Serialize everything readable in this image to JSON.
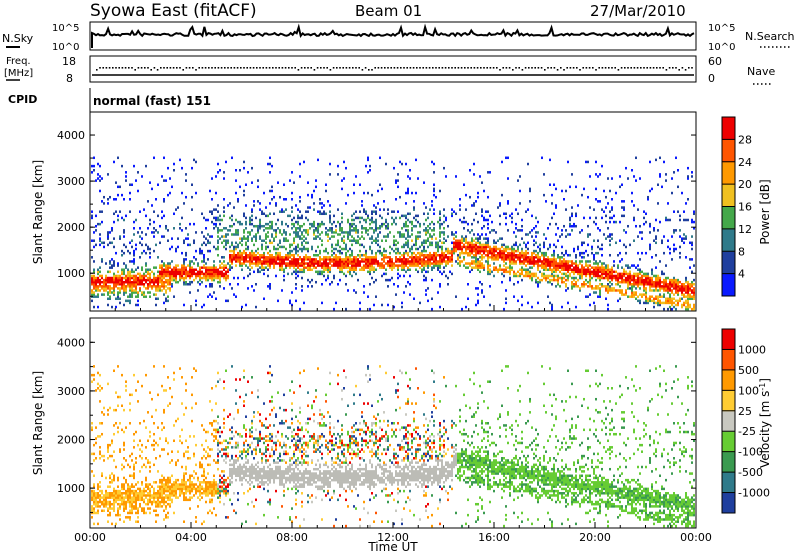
{
  "header": {
    "station": "Syowa East (fitACF)",
    "beam": "Beam 01",
    "date": "27/Mar/2010"
  },
  "summary_panels": {
    "nsky_label": "N.Sky",
    "nsky_ticks": [
      "10^5",
      "10^0"
    ],
    "nsearch_label": "N.Search",
    "nsearch_ticks": [
      "10^5",
      "10^0"
    ],
    "freq_label_line1": "Freq.",
    "freq_label_line2": "[MHz]",
    "freq_ticks": [
      "18",
      "8"
    ],
    "nave_label": "Nave",
    "nave_ticks": [
      "60",
      "0"
    ],
    "cpid_label": "CPID",
    "cpid_value": "normal (fast) 151"
  },
  "colors": {
    "power_scale": [
      "#0a1aff",
      "#1f3f9e",
      "#2f7a8a",
      "#44a84a",
      "#f0c020",
      "#ff9900",
      "#ff5500",
      "#ee0000"
    ],
    "velocity_scale": [
      "#1f3f9e",
      "#2f7a8a",
      "#3a9a50",
      "#66cc33",
      "#c8c8c0",
      "#ffcc33",
      "#ff9900",
      "#ff5500",
      "#ee0000"
    ],
    "ground_scatter": "#bcbcb6"
  },
  "chart_data": [
    {
      "type": "heatmap",
      "name": "power",
      "xlabel": "",
      "ylabel": "Slant Range [km]",
      "colorbar_label": "Power [dB]",
      "colorbar_ticks": [
        "28",
        "24",
        "20",
        "16",
        "12",
        "8",
        "4"
      ],
      "colorbar_range": [
        0,
        32
      ],
      "y_ticks": [
        "4000",
        "3000",
        "2000",
        "1000"
      ],
      "ylim": [
        180,
        4500
      ],
      "xlim_hours": [
        0,
        24
      ]
    },
    {
      "type": "heatmap",
      "name": "velocity",
      "xlabel": "Time UT",
      "ylabel": "Slant Range [km]",
      "colorbar_label": "Velocity [m s",
      "colorbar_label_sup": "-1",
      "colorbar_ticks": [
        "1000",
        "500",
        "100",
        "25",
        "-25",
        "-100",
        "-500",
        "-1000"
      ],
      "y_ticks": [
        "4000",
        "3000",
        "2000",
        "1000"
      ],
      "ylim": [
        180,
        4500
      ],
      "x_ticks": [
        "00:00",
        "04:00",
        "08:00",
        "12:00",
        "16:00",
        "20:00",
        "00:00"
      ],
      "xlim_hours": [
        0,
        24
      ]
    }
  ]
}
